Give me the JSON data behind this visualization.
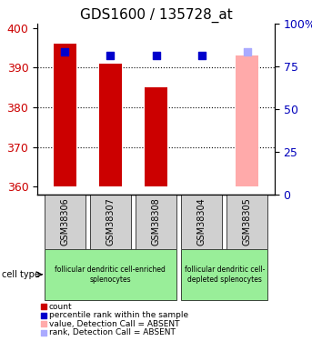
{
  "title": "GDS1600 / 135728_at",
  "samples": [
    "GSM38306",
    "GSM38307",
    "GSM38308",
    "GSM38304",
    "GSM38305"
  ],
  "bar_values": [
    396,
    391,
    385,
    360,
    393
  ],
  "bar_colors": [
    "#cc0000",
    "#cc0000",
    "#cc0000",
    "#cc0000",
    "#ffaaaa"
  ],
  "dot_values": [
    394,
    393,
    393,
    393,
    394
  ],
  "dot_colors": [
    "#0000cc",
    "#0000cc",
    "#0000cc",
    "#0000cc",
    "#aaaaff"
  ],
  "bar_bottom": 360,
  "ylim_left": [
    358,
    401
  ],
  "ylim_right": [
    0,
    100
  ],
  "yticks_left": [
    360,
    370,
    380,
    390,
    400
  ],
  "yticks_right": [
    0,
    25,
    50,
    75,
    100
  ],
  "ytick_labels_right": [
    "0",
    "25",
    "50",
    "75",
    "100%"
  ],
  "cell_type_groups": [
    {
      "label": "follicular dendritic cell-enriched\nsplenocytes",
      "samples": [
        "GSM38306",
        "GSM38307",
        "GSM38308"
      ],
      "color": "#99ff99"
    },
    {
      "label": "follicular dendritic cell-\ndepleted splenocytes",
      "samples": [
        "GSM38304",
        "GSM38305"
      ],
      "color": "#99ff99"
    }
  ],
  "legend_items": [
    {
      "label": "count",
      "color": "#cc0000",
      "marker": "s"
    },
    {
      "label": "percentile rank within the sample",
      "color": "#0000cc",
      "marker": "s"
    },
    {
      "label": "value, Detection Call = ABSENT",
      "color": "#ffaaaa",
      "marker": "s"
    },
    {
      "label": "rank, Detection Call = ABSENT",
      "color": "#aaaaff",
      "marker": "s"
    }
  ],
  "bar_width": 0.5,
  "dot_size": 40,
  "tick_label_color_left": "#cc0000",
  "tick_label_color_right": "#0000bb"
}
